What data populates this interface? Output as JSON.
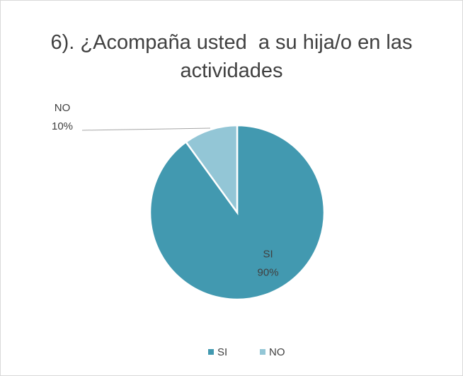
{
  "chart_data": {
    "type": "pie",
    "title": "6). ¿Acompaña usted  a su hija/o en las actividades",
    "categories": [
      "SI",
      "NO"
    ],
    "values": [
      90,
      10
    ],
    "value_labels": [
      "90%",
      "10%"
    ],
    "colors": [
      "#4299b0",
      "#93c6d6"
    ],
    "legend": "bottom"
  }
}
